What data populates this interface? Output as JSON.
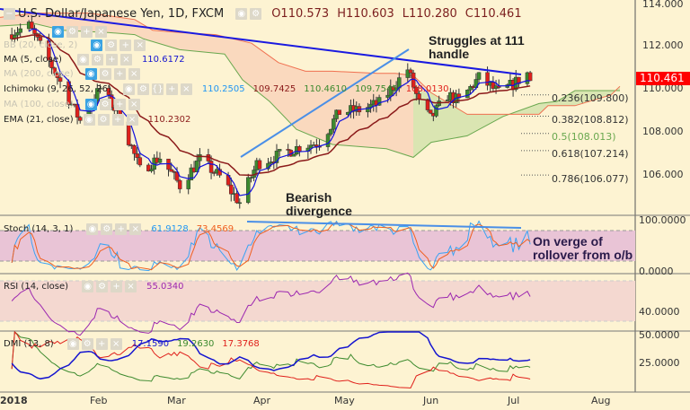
{
  "header": {
    "symbol_title": "U.S. Dollar/Japanese Yen, 1D, FXCM",
    "open": "O110.573",
    "high": "H110.603",
    "low": "L110.280",
    "close": "C110.461"
  },
  "legends": {
    "bb": "BB (20, close, 2)",
    "ma5": {
      "label": "MA (5, close)",
      "value": "110.6172"
    },
    "ma200": "MA (200, close)",
    "ichimoku": {
      "label": "Ichimoku (9, 26, 52, 26)",
      "values": [
        "110.2505",
        "109.7425",
        "110.4610",
        "109.7545",
        "108.0130"
      ]
    },
    "ma100": "MA (100, close)",
    "ema": {
      "label": "EMA (21, close)",
      "value": "110.2302"
    },
    "stoch": {
      "label": "Stoch (14, 3, 1)",
      "k": "61.9128",
      "d": "73.4569"
    },
    "rsi": {
      "label": "RSI (14, close)",
      "value": "55.0340"
    },
    "dmi": {
      "label": "DMI (13, 8)",
      "adx": "17.1590",
      "plus": "19.2630",
      "minus": "17.3768"
    }
  },
  "annotations": {
    "struggles": [
      "Struggles at 111",
      "handle"
    ],
    "bearish": [
      "Bearish",
      "divergence"
    ],
    "rollover": [
      "On verge of",
      "rollover from o/b"
    ]
  },
  "fib_levels": [
    {
      "label": "0.236(109.800)",
      "color": "#333333"
    },
    {
      "label": "0.382(108.812)",
      "color": "#333333"
    },
    {
      "label": "0.5(108.013)",
      "color": "#6aa84f"
    },
    {
      "label": "0.618(107.214)",
      "color": "#333333"
    },
    {
      "label": "0.786(106.077)",
      "color": "#333333"
    }
  ],
  "price_axis": {
    "labels": [
      "114.000",
      "112.000",
      "110.000",
      "108.000",
      "106.000"
    ],
    "last_price": "110.461",
    "last_price_color": "#ff0000"
  },
  "osc_axis": {
    "stoch": [
      "100.0000",
      "0.0000"
    ],
    "rsi": [
      "40.0000"
    ],
    "dmi": [
      "50.0000",
      "25.0000"
    ]
  },
  "time_axis": [
    "2018",
    "Feb",
    "Mar",
    "Apr",
    "May",
    "Jun",
    "Jul",
    "Aug"
  ],
  "chart_data": {
    "type": "candlestick",
    "title": "U.S. Dollar/Japanese Yen, 1D, FXCM",
    "ylim": [
      104.5,
      114.2
    ],
    "price_path": [
      [
        "2018-01-02",
        112.7
      ],
      [
        "2018-01-08",
        113.0
      ],
      [
        "2018-01-17",
        110.9
      ],
      [
        "2018-01-26",
        108.6
      ],
      [
        "2018-02-02",
        110.1
      ],
      [
        "2018-02-09",
        108.8
      ],
      [
        "2018-02-16",
        106.3
      ],
      [
        "2018-02-23",
        106.9
      ],
      [
        "2018-03-02",
        105.6
      ],
      [
        "2018-03-09",
        106.8
      ],
      [
        "2018-03-16",
        106.0
      ],
      [
        "2018-03-23",
        104.8
      ],
      [
        "2018-03-29",
        106.6
      ],
      [
        "2018-04-06",
        107.0
      ],
      [
        "2018-04-13",
        107.4
      ],
      [
        "2018-04-20",
        107.6
      ],
      [
        "2018-04-27",
        109.0
      ],
      [
        "2018-05-04",
        109.1
      ],
      [
        "2018-05-11",
        109.4
      ],
      [
        "2018-05-21",
        111.0
      ],
      [
        "2018-05-25",
        109.4
      ],
      [
        "2018-05-29",
        108.7
      ],
      [
        "2018-06-04",
        109.8
      ],
      [
        "2018-06-08",
        109.5
      ],
      [
        "2018-06-15",
        110.6
      ],
      [
        "2018-06-22",
        109.9
      ],
      [
        "2018-06-27",
        110.3
      ],
      [
        "2018-07-02",
        110.8
      ],
      [
        "2018-07-03",
        110.46
      ]
    ],
    "colors": {
      "up": "#3c8a2e",
      "down": "#e0201b",
      "ma5": "#1010e0",
      "ema21": "#8b1a1a",
      "trendline": "#1a1ae0",
      "channel": "#4a8fe7"
    }
  }
}
